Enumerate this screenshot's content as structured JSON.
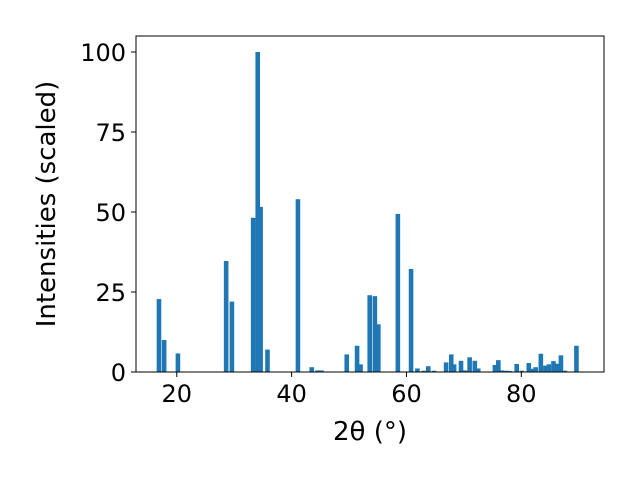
{
  "chart_data": {
    "type": "bar",
    "xlabel": "2θ (°)",
    "ylabel": "Intensities (scaled)",
    "xlim": [
      12.9,
      94.4
    ],
    "ylim": [
      0,
      105
    ],
    "x_ticks": [
      20,
      40,
      60,
      80
    ],
    "y_ticks": [
      0,
      25,
      50,
      75,
      100
    ],
    "bar_width": 0.8,
    "bar_color": "#1f77b4",
    "series": [
      {
        "x": [
          16.9,
          17.8,
          20.2,
          28.6,
          29.6,
          33.3,
          34.1,
          34.6,
          35.8,
          41.1,
          43.5,
          44.5,
          45.2,
          49.6,
          51.4,
          52.0,
          53.6,
          54.5,
          55.1,
          58.5,
          60.8,
          61.9,
          63.0,
          63.8,
          64.8,
          66.9,
          67.8,
          68.3,
          69.5,
          70.2,
          71.0,
          71.9,
          72.5,
          75.4,
          76.0,
          76.6,
          77.4,
          78.0,
          79.2,
          80.1,
          81.3,
          82.0,
          82.5,
          83.4,
          84.2,
          84.8,
          85.6,
          86.3,
          86.9,
          87.6,
          89.6
        ],
        "values": [
          22.8,
          10.0,
          5.8,
          34.7,
          22.0,
          48.2,
          100.0,
          51.6,
          7.0,
          54.0,
          1.5,
          0.5,
          0.5,
          5.5,
          8.2,
          2.4,
          24.0,
          23.7,
          14.9,
          49.4,
          32.2,
          1.1,
          0.4,
          1.8,
          0.4,
          3.0,
          5.5,
          2.4,
          3.5,
          0.5,
          4.6,
          3.5,
          1.1,
          2.2,
          3.7,
          0.5,
          0.4,
          0.3,
          2.5,
          0.4,
          2.8,
          1.0,
          1.5,
          5.7,
          2.0,
          2.4,
          3.4,
          2.6,
          5.2,
          0.4,
          8.2
        ]
      }
    ]
  }
}
